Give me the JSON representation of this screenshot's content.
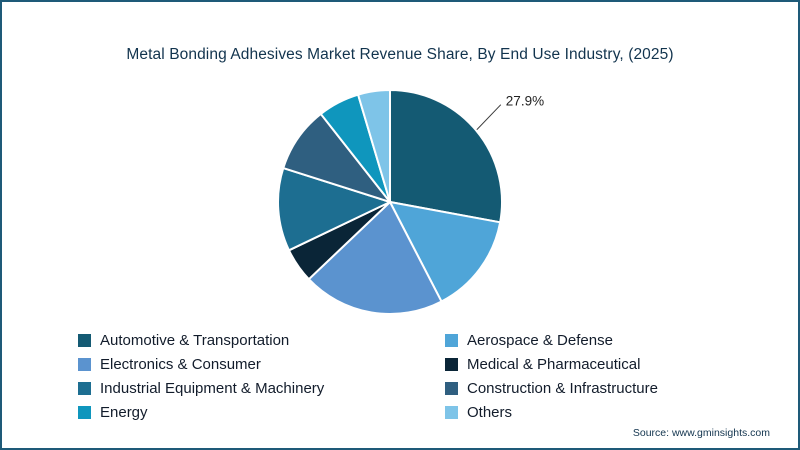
{
  "page": {
    "title": "Metal Bonding Adhesives Market Revenue Share, By End Use Industry, (2025)",
    "source": "Source: www.gminsights.com"
  },
  "chart_data": {
    "type": "pie",
    "title": "Metal Bonding Adhesives Market Revenue Share, By End Use Industry, (2025)",
    "start_angle_deg": 0,
    "direction": "clockwise",
    "legend_position": "bottom",
    "callout": {
      "slice_index": 0,
      "text": "27.9%"
    },
    "slices": [
      {
        "label": "Automotive & Transportation",
        "value": 27.9,
        "color": "#145A73"
      },
      {
        "label": "Aerospace & Defense",
        "value": 14.5,
        "color": "#4FA5D8"
      },
      {
        "label": "Electronics & Consumer",
        "value": 20.5,
        "color": "#5B93CF"
      },
      {
        "label": "Medical & Pharmaceutical",
        "value": 5.0,
        "color": "#0A2537"
      },
      {
        "label": "Industrial Equipment & Machinery",
        "value": 12.0,
        "color": "#1D6E91"
      },
      {
        "label": "Construction & Infrastructure",
        "value": 9.5,
        "color": "#2F5F80"
      },
      {
        "label": "Energy",
        "value": 6.0,
        "color": "#0F96BD"
      },
      {
        "label": "Others",
        "value": 4.6,
        "color": "#7EC4E8"
      }
    ]
  }
}
